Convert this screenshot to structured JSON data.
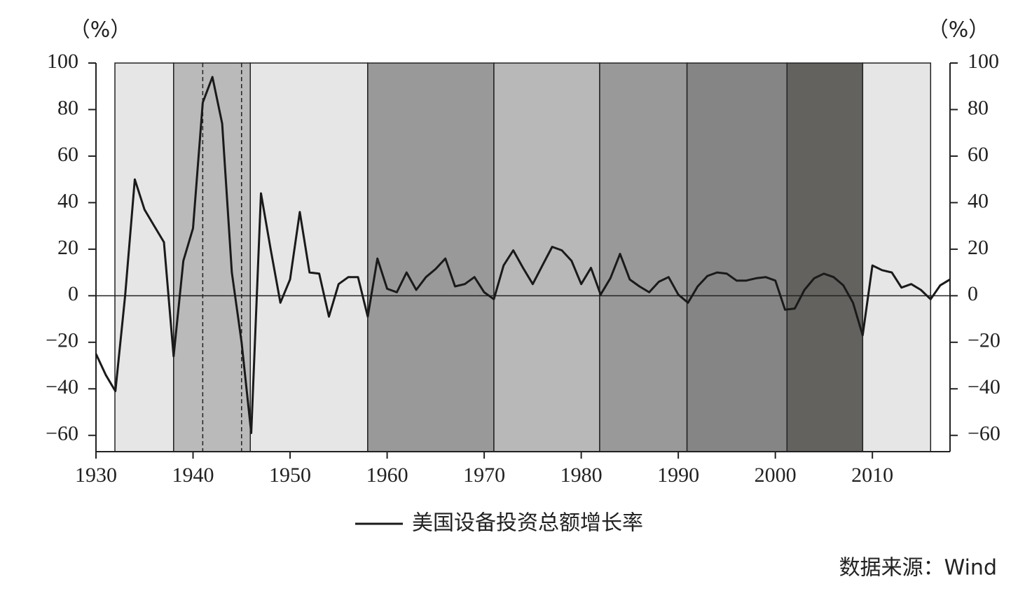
{
  "chart_data": {
    "type": "line",
    "ylabel": "（%）",
    "y2label": "（%）",
    "x": [
      1930,
      1931,
      1932,
      1933,
      1934,
      1935,
      1936,
      1937,
      1938,
      1939,
      1940,
      1941,
      1942,
      1943,
      1944,
      1945,
      1946,
      1947,
      1948,
      1949,
      1950,
      1951,
      1952,
      1953,
      1954,
      1955,
      1956,
      1957,
      1958,
      1959,
      1960,
      1961,
      1962,
      1963,
      1964,
      1965,
      1966,
      1967,
      1968,
      1969,
      1970,
      1971,
      1972,
      1973,
      1974,
      1975,
      1976,
      1977,
      1978,
      1979,
      1980,
      1981,
      1982,
      1983,
      1984,
      1985,
      1986,
      1987,
      1988,
      1989,
      1990,
      1991,
      1992,
      1993,
      1994,
      1995,
      1996,
      1997,
      1998,
      1999,
      2000,
      2001,
      2002,
      2003,
      2004,
      2005,
      2006,
      2007,
      2008,
      2009,
      2010,
      2011,
      2012,
      2013,
      2014,
      2015,
      2016,
      2017,
      2018
    ],
    "series": [
      {
        "name": "美国设备投资总额增长率",
        "color": "#1a1a1a",
        "values": [
          -25,
          -34,
          -41,
          0,
          50,
          37,
          30,
          23,
          -26,
          15,
          29,
          83,
          94,
          74,
          10,
          -20,
          -59,
          44,
          20,
          -3,
          7,
          36,
          10,
          9.5,
          -9,
          5,
          8,
          8,
          -9,
          16,
          3,
          1.5,
          10,
          2.5,
          8,
          11.5,
          16,
          4,
          5,
          8,
          1.5,
          -1.5,
          13,
          19.5,
          12,
          5,
          13,
          21,
          19.5,
          15,
          5,
          12,
          0.5,
          7.5,
          18,
          7,
          4,
          1.5,
          6,
          8,
          0.5,
          -3,
          4,
          8.5,
          10,
          9.5,
          6.5,
          6.5,
          7.5,
          8,
          6.5,
          -6,
          -5.5,
          2.5,
          7.5,
          9.5,
          8,
          4.5,
          -3,
          -17,
          13,
          11,
          10,
          3.5,
          5,
          2.5,
          -1.5,
          4.5,
          7
        ]
      }
    ],
    "bands": [
      {
        "start": 1931.95,
        "end": 1938,
        "color": "#e6e6e6"
      },
      {
        "start": 1938,
        "end": 1945.9,
        "color": "#bababa"
      },
      {
        "start": 1945.9,
        "end": 1958,
        "color": "#e6e6e6"
      },
      {
        "start": 1958,
        "end": 1971,
        "color": "#9a9999"
      },
      {
        "start": 1971,
        "end": 1981.9,
        "color": "#b9b8b8"
      },
      {
        "start": 1981.9,
        "end": 1990.9,
        "color": "#9a9999"
      },
      {
        "start": 1990.9,
        "end": 2001.2,
        "color": "#868585"
      },
      {
        "start": 2001.2,
        "end": 2009,
        "color": "#63625f"
      },
      {
        "start": 2009,
        "end": 2016,
        "color": "#e6e6e6"
      }
    ],
    "vlines": [
      1941,
      1945
    ],
    "xlim": [
      1930,
      2018
    ],
    "xticks": [
      1930,
      1940,
      1950,
      1960,
      1970,
      1980,
      1990,
      2000,
      2010
    ],
    "ylim": [
      -67,
      100
    ],
    "yticks": [
      {
        "value": -60,
        "label": "−60"
      },
      {
        "value": -40,
        "label": "−40"
      },
      {
        "value": -20,
        "label": "−20"
      },
      0,
      20,
      40,
      60,
      80,
      100
    ],
    "y2lim": [
      -67,
      100
    ],
    "y2ticks": [
      {
        "value": -60,
        "label": "−60"
      },
      {
        "value": -40,
        "label": "−40"
      },
      {
        "value": -20,
        "label": "−20"
      },
      0,
      20,
      40,
      60,
      80,
      100
    ],
    "source": "数据来源：Wind"
  }
}
